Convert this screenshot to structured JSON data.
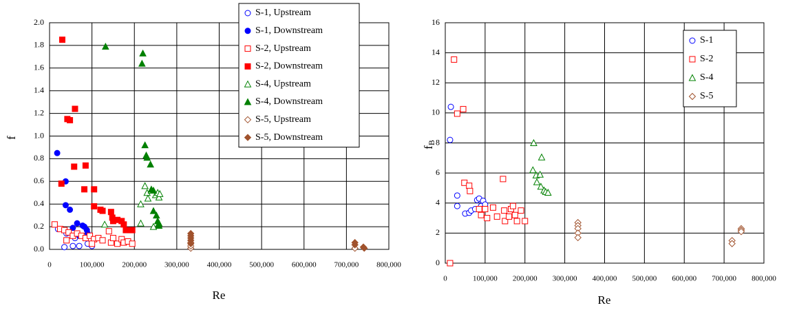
{
  "chart_data": [
    {
      "type": "scatter",
      "xlabel": "Re",
      "ylabel": "f",
      "xlim": [
        0,
        800000
      ],
      "ylim": [
        0,
        2
      ],
      "xticks": [
        0,
        {
          "value": 100000,
          "label": "100,000"
        },
        {
          "value": 200000,
          "label": "200,000"
        },
        {
          "value": 300000,
          "label": "300,000"
        },
        {
          "value": 400000,
          "label": "400,000"
        },
        {
          "value": 500000,
          "label": "500,000"
        },
        {
          "value": 600000,
          "label": "600,000"
        },
        {
          "value": 700000,
          "label": "700,000"
        },
        {
          "value": 800000,
          "label": "800,000"
        }
      ],
      "yticks": [
        {
          "value": 0,
          "label": "0.0"
        },
        0.2,
        0.4,
        0.6,
        0.8,
        {
          "value": 1,
          "label": "1.0"
        },
        1.2,
        1.4,
        1.6,
        1.8,
        {
          "value": 2,
          "label": "2.0"
        }
      ],
      "grid": true,
      "legend": "upper right",
      "series": [
        {
          "name": "S-1, Upstream",
          "color": "#0000ff",
          "marker": "circle",
          "filled": false,
          "x": [
            35000,
            55000,
            20000,
            40000,
            70000,
            90000,
            85000,
            100000,
            60000
          ],
          "values": [
            0.02,
            0.03,
            0.18,
            0.14,
            0.03,
            0.05,
            0.12,
            0.03,
            0.1
          ]
        },
        {
          "name": "S-1, Downstream",
          "color": "#0000ff",
          "marker": "circle",
          "filled": true,
          "x": [
            18000,
            38000,
            38000,
            48000,
            55000,
            65000,
            78000,
            82000,
            88000,
            70000,
            90000
          ],
          "values": [
            0.85,
            0.6,
            0.39,
            0.35,
            0.19,
            0.23,
            0.21,
            0.2,
            0.17,
            0.12,
            0.14
          ]
        },
        {
          "name": "S-2, Upstream",
          "color": "#ff0000",
          "marker": "square",
          "filled": false,
          "x": [
            12000,
            25000,
            35000,
            45000,
            55000,
            65000,
            75000,
            85000,
            95000,
            105000,
            115000,
            125000,
            140000,
            145000,
            150000,
            160000,
            170000,
            175000,
            185000,
            195000,
            40000,
            100000
          ],
          "values": [
            0.22,
            0.18,
            0.17,
            0.15,
            0.12,
            0.14,
            0.12,
            0.1,
            0.12,
            0.09,
            0.1,
            0.08,
            0.16,
            0.06,
            0.1,
            0.05,
            0.09,
            0.06,
            0.07,
            0.05,
            0.08,
            0.05
          ]
        },
        {
          "name": "S-2, Downstream",
          "color": "#ff0000",
          "marker": "square",
          "filled": true,
          "x": [
            30000,
            28000,
            42000,
            48000,
            60000,
            58000,
            85000,
            82000,
            105000,
            105000,
            120000,
            125000,
            145000,
            148000,
            150000,
            160000,
            170000,
            175000,
            180000,
            190000,
            195000
          ],
          "values": [
            1.85,
            0.58,
            1.15,
            1.14,
            1.24,
            0.73,
            0.74,
            0.53,
            0.53,
            0.38,
            0.35,
            0.34,
            0.33,
            0.28,
            0.25,
            0.26,
            0.25,
            0.22,
            0.17,
            0.17,
            0.17
          ]
        },
        {
          "name": "S-4, Upstream",
          "color": "#008000",
          "marker": "triangle",
          "filled": false,
          "x": [
            130000,
            215000,
            215000,
            225000,
            230000,
            232000,
            240000,
            245000,
            250000,
            255000,
            258000,
            260000
          ],
          "values": [
            0.22,
            0.4,
            0.23,
            0.56,
            0.5,
            0.45,
            0.52,
            0.2,
            0.48,
            0.5,
            0.46,
            0.49
          ]
        },
        {
          "name": "S-4, Downstream",
          "color": "#008000",
          "marker": "triangle",
          "filled": true,
          "x": [
            132000,
            220000,
            218000,
            225000,
            228000,
            230000,
            238000,
            240000,
            245000,
            245000,
            252000,
            255000,
            258000,
            258000
          ],
          "values": [
            1.79,
            1.73,
            1.64,
            0.92,
            0.83,
            0.81,
            0.75,
            0.53,
            0.52,
            0.34,
            0.3,
            0.25,
            0.23,
            0.21
          ]
        },
        {
          "name": "S-5, Upstream",
          "color": "#a0522d",
          "marker": "diamond",
          "filled": false,
          "x": [
            333000,
            333000,
            333000,
            720000,
            740000
          ],
          "values": [
            0.01,
            0.03,
            0.06,
            0.01,
            0.02
          ]
        },
        {
          "name": "S-5, Downstream",
          "color": "#a0522d",
          "marker": "diamond",
          "filled": true,
          "x": [
            333000,
            333000,
            333000,
            333000,
            333000,
            720000,
            720000,
            740000,
            742000
          ],
          "values": [
            0.14,
            0.12,
            0.1,
            0.08,
            0.05,
            0.06,
            0.04,
            0.02,
            0.01
          ]
        }
      ]
    },
    {
      "type": "scatter",
      "xlabel": "Re",
      "ylabel": "f",
      "ylabel_sub": "B",
      "xlim": [
        0,
        800000
      ],
      "ylim": [
        0,
        16
      ],
      "xticks": [
        0,
        {
          "value": 100000,
          "label": "100,000"
        },
        {
          "value": 200000,
          "label": "200,000"
        },
        {
          "value": 300000,
          "label": "300,000"
        },
        {
          "value": 400000,
          "label": "400,000"
        },
        {
          "value": 500000,
          "label": "500,000"
        },
        {
          "value": 600000,
          "label": "600,000"
        },
        {
          "value": 700000,
          "label": "700,000"
        },
        {
          "value": 800000,
          "label": "800,000"
        }
      ],
      "yticks": [
        0,
        2,
        4,
        6,
        8,
        10,
        12,
        14,
        16
      ],
      "grid": true,
      "legend": "upper right",
      "series": [
        {
          "name": "S-1",
          "color": "#0000ff",
          "marker": "circle",
          "filled": false,
          "x": [
            12000,
            14000,
            30000,
            30000,
            50000,
            60000,
            65000,
            75000,
            80000,
            85000,
            90000,
            95000,
            100000
          ],
          "values": [
            8.2,
            10.4,
            3.8,
            4.5,
            3.3,
            3.35,
            3.5,
            3.6,
            4.2,
            4.3,
            3.8,
            4.15,
            3.9
          ]
        },
        {
          "name": "S-2",
          "color": "#ff0000",
          "marker": "square",
          "filled": false,
          "x": [
            12000,
            22000,
            30000,
            45000,
            48000,
            60000,
            62000,
            85000,
            90000,
            100000,
            105000,
            120000,
            130000,
            145000,
            148000,
            150000,
            160000,
            165000,
            170000,
            175000,
            180000,
            190000,
            200000
          ],
          "values": [
            0,
            13.55,
            9.95,
            10.25,
            5.35,
            5.15,
            4.8,
            3.6,
            3.2,
            3.6,
            3.0,
            3.7,
            3.1,
            5.6,
            3.5,
            2.8,
            3.1,
            3.6,
            3.8,
            3.2,
            2.8,
            3.5,
            2.8
          ]
        },
        {
          "name": "S-4",
          "color": "#008000",
          "marker": "triangle",
          "filled": false,
          "x": [
            220000,
            222000,
            228000,
            230000,
            238000,
            240000,
            242000,
            248000,
            252000,
            258000
          ],
          "values": [
            6.2,
            8.0,
            5.85,
            5.4,
            5.9,
            5.1,
            7.05,
            4.85,
            4.75,
            4.7
          ]
        },
        {
          "name": "S-5",
          "color": "#a0522d",
          "marker": "diamond",
          "filled": false,
          "x": [
            333000,
            333000,
            333000,
            333000,
            333000,
            720000,
            720000,
            743000,
            743000,
            743000
          ],
          "values": [
            2.7,
            2.5,
            2.3,
            2.0,
            1.7,
            1.5,
            1.3,
            2.3,
            2.2,
            2.1
          ]
        }
      ]
    }
  ]
}
